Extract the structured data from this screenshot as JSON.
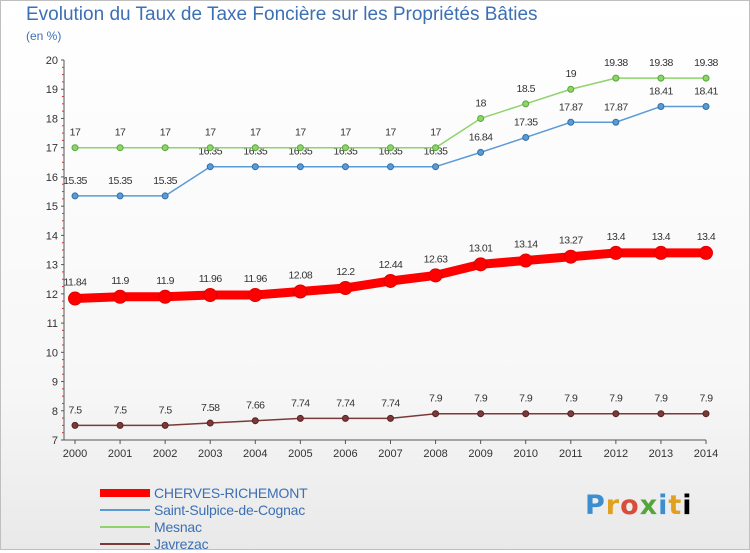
{
  "header": {
    "title": "Evolution du Taux de Taxe Foncière sur les Propriétés Bâties",
    "unit": "(en %)"
  },
  "logo": {
    "text": "Proxiti"
  },
  "chart_data": {
    "type": "line",
    "title": "Evolution du Taux de Taxe Foncière sur les Propriétés Bâties",
    "ylabel": "(en %)",
    "xlabel": "",
    "x": [
      "2000",
      "2001",
      "2002",
      "2003",
      "2004",
      "2005",
      "2006",
      "2007",
      "2008",
      "2009",
      "2010",
      "2011",
      "2012",
      "2013",
      "2014"
    ],
    "ylim": [
      7,
      20
    ],
    "yticks": [
      "7",
      "8",
      "9",
      "10",
      "11",
      "12",
      "13",
      "14",
      "15",
      "16",
      "17",
      "18",
      "19",
      "20"
    ],
    "grid": false,
    "legend_position": "bottom-left",
    "series": [
      {
        "name": "CHERVES-RICHEMONT",
        "color": "#ff0000",
        "values": [
          11.84,
          11.9,
          11.9,
          11.96,
          11.96,
          12.08,
          12.2,
          12.44,
          12.63,
          13.01,
          13.14,
          13.27,
          13.4,
          13.4,
          13.4
        ],
        "labels": [
          "11.84",
          "11.9",
          "11.9",
          "11.96",
          "11.96",
          "12.08",
          "12.2",
          "12.44",
          "12.63",
          "13.01",
          "13.14",
          "13.27",
          "13.4",
          "13.4",
          "13.4"
        ]
      },
      {
        "name": "Saint-Sulpice-de-Cognac",
        "color": "#5b9bd5",
        "values": [
          15.35,
          15.35,
          15.35,
          16.35,
          16.35,
          16.35,
          16.35,
          16.35,
          16.35,
          16.84,
          17.35,
          17.87,
          17.87,
          18.41,
          18.41
        ],
        "labels": [
          "15.35",
          "15.35",
          "15.35",
          "16.35",
          "16.35",
          "16.35",
          "16.35",
          "16.35",
          "16.35",
          "16.84",
          "17.35",
          "17.87",
          "17.87",
          "18.41",
          "18.41"
        ]
      },
      {
        "name": "Mesnac",
        "color": "#8fd36b",
        "values": [
          17,
          17,
          17,
          17,
          17,
          17,
          17,
          17,
          17,
          18,
          18.5,
          19,
          19.38,
          19.38,
          19.38
        ],
        "labels": [
          "17",
          "17",
          "17",
          "17",
          "17",
          "17",
          "17",
          "17",
          "17",
          "18",
          "18.5",
          "19",
          "19.38",
          "19.38",
          "19.38"
        ]
      },
      {
        "name": "Javrezac",
        "color": "#7b3a3a",
        "values": [
          7.5,
          7.5,
          7.5,
          7.58,
          7.66,
          7.74,
          7.74,
          7.74,
          7.9,
          7.9,
          7.9,
          7.9,
          7.9,
          7.9,
          7.9
        ],
        "labels": [
          "7.5",
          "7.5",
          "7.5",
          "7.58",
          "7.66",
          "7.74",
          "7.74",
          "7.74",
          "7.9",
          "7.9",
          "7.9",
          "7.9",
          "7.9",
          "7.9",
          "7.9"
        ]
      }
    ]
  }
}
